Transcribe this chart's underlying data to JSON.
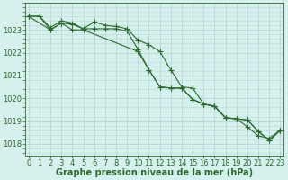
{
  "line1_x": [
    0,
    1,
    2,
    3,
    4,
    5,
    6,
    7,
    8,
    9,
    10,
    11,
    12,
    13,
    14,
    15,
    16,
    17,
    18,
    19,
    20,
    21,
    22,
    23
  ],
  "line1_y": [
    1023.6,
    1023.6,
    1023.1,
    1023.4,
    1023.3,
    1023.05,
    1023.35,
    1023.2,
    1023.15,
    1023.05,
    1022.55,
    1022.35,
    1022.05,
    1021.25,
    1020.5,
    1020.45,
    1019.75,
    1019.65,
    1019.15,
    1019.1,
    1018.75,
    1018.35,
    1018.25,
    1018.6
  ],
  "line2_x": [
    0,
    1,
    2,
    3,
    4,
    5,
    6,
    7,
    8,
    9,
    10,
    11,
    12,
    13,
    14,
    15,
    16,
    17,
    18,
    19,
    20,
    21,
    22,
    23
  ],
  "line2_y": [
    1023.6,
    1023.6,
    1023.0,
    1023.3,
    1023.25,
    1023.05,
    1023.05,
    1023.05,
    1023.05,
    1022.95,
    1022.15,
    1021.25,
    1020.5,
    1020.45,
    1020.45,
    1019.95,
    1019.75,
    1019.65,
    1019.15,
    1019.1,
    1019.05,
    1018.55,
    1018.15,
    1018.6
  ],
  "line3_x": [
    0,
    2,
    3,
    4,
    5,
    10,
    11,
    12,
    13,
    14,
    15,
    16,
    17,
    18,
    19,
    20,
    21,
    22,
    23
  ],
  "line3_y": [
    1023.6,
    1023.0,
    1023.3,
    1023.0,
    1023.0,
    1022.05,
    1021.25,
    1020.5,
    1020.45,
    1020.45,
    1019.95,
    1019.75,
    1019.65,
    1019.15,
    1019.1,
    1019.05,
    1018.55,
    1018.15,
    1018.6
  ],
  "line_color": "#2d6a2d",
  "marker": "+",
  "markersize": 4,
  "xlabel": "Graphe pression niveau de la mer (hPa)",
  "xticks": [
    0,
    1,
    2,
    3,
    4,
    5,
    6,
    7,
    8,
    9,
    10,
    11,
    12,
    13,
    14,
    15,
    16,
    17,
    18,
    19,
    20,
    21,
    22,
    23
  ],
  "yticks": [
    1018,
    1019,
    1020,
    1021,
    1022,
    1023
  ],
  "ylim": [
    1017.5,
    1024.2
  ],
  "xlim": [
    -0.3,
    23.3
  ],
  "bg_color": "#d6f0ee",
  "grid_color": "#b8dbd8",
  "text_color": "#2d6a2d",
  "xlabel_fontsize": 7,
  "tick_fontsize": 6
}
